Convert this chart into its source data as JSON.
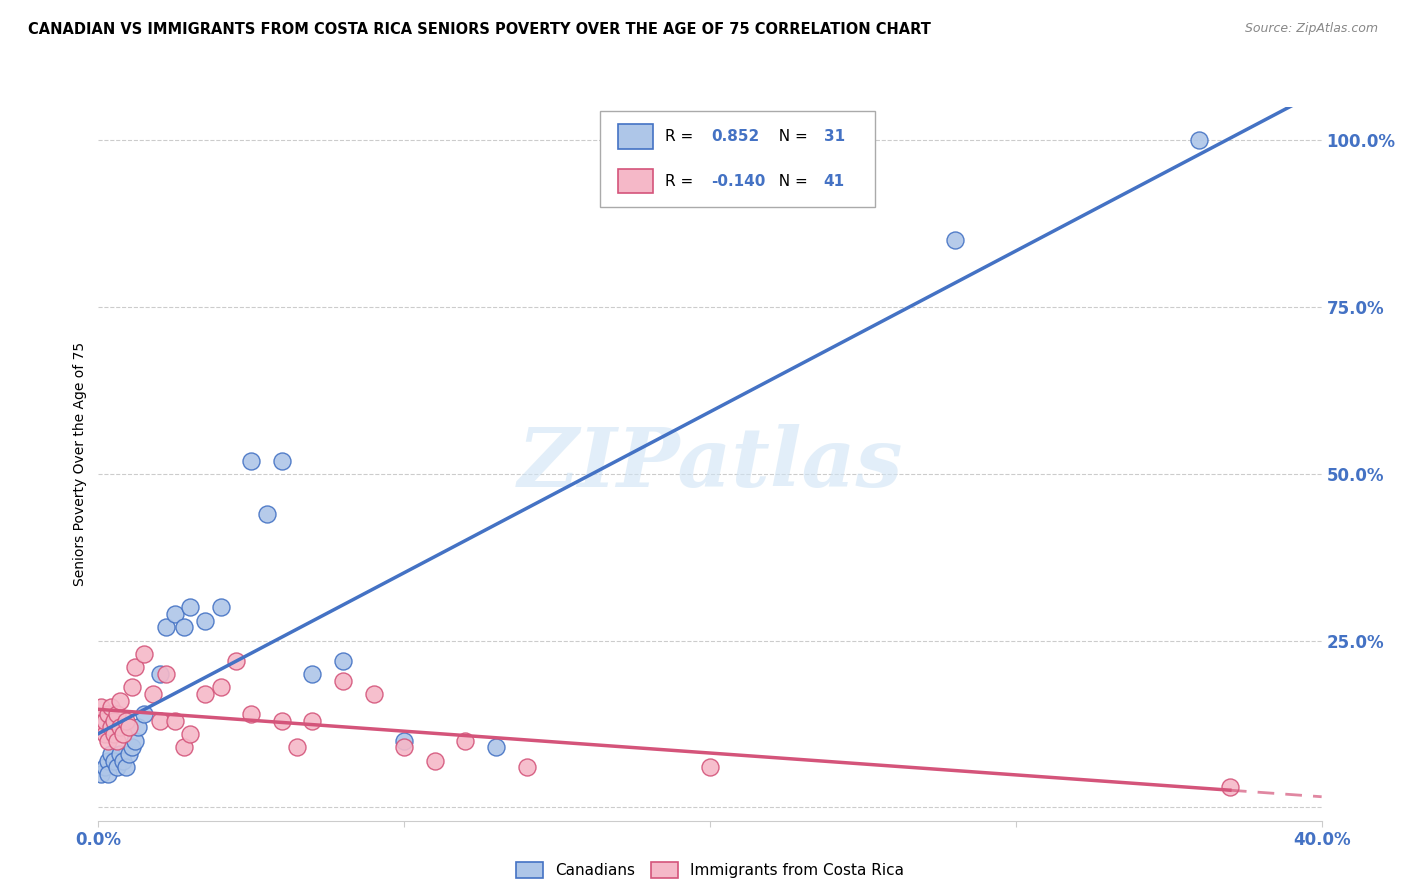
{
  "title": "CANADIAN VS IMMIGRANTS FROM COSTA RICA SENIORS POVERTY OVER THE AGE OF 75 CORRELATION CHART",
  "source": "Source: ZipAtlas.com",
  "ylabel": "Seniors Poverty Over the Age of 75",
  "watermark": "ZIPatlas",
  "canadians_R": 0.852,
  "canadians_N": 31,
  "immigrants_R": -0.14,
  "immigrants_N": 41,
  "canadian_color": "#aec6e8",
  "immigrant_color": "#f5b8c8",
  "canadian_line_color": "#4472c4",
  "immigrant_line_color": "#d4547a",
  "legend_R_color": "#4472c4",
  "canadians_x": [
    0.001,
    0.002,
    0.003,
    0.003,
    0.004,
    0.005,
    0.006,
    0.007,
    0.008,
    0.009,
    0.01,
    0.011,
    0.012,
    0.013,
    0.015,
    0.02,
    0.022,
    0.025,
    0.028,
    0.03,
    0.035,
    0.04,
    0.05,
    0.055,
    0.06,
    0.07,
    0.08,
    0.1,
    0.13,
    0.28,
    0.36
  ],
  "canadians_y": [
    0.05,
    0.06,
    0.07,
    0.05,
    0.08,
    0.07,
    0.06,
    0.08,
    0.07,
    0.06,
    0.08,
    0.09,
    0.1,
    0.12,
    0.14,
    0.2,
    0.27,
    0.29,
    0.27,
    0.3,
    0.28,
    0.3,
    0.52,
    0.44,
    0.52,
    0.2,
    0.22,
    0.1,
    0.09,
    0.85,
    1.0
  ],
  "immigrants_x": [
    0.001,
    0.001,
    0.002,
    0.002,
    0.003,
    0.003,
    0.004,
    0.004,
    0.005,
    0.005,
    0.006,
    0.006,
    0.007,
    0.007,
    0.008,
    0.009,
    0.01,
    0.011,
    0.012,
    0.015,
    0.018,
    0.02,
    0.022,
    0.025,
    0.028,
    0.03,
    0.035,
    0.04,
    0.045,
    0.05,
    0.06,
    0.065,
    0.07,
    0.08,
    0.09,
    0.1,
    0.11,
    0.12,
    0.14,
    0.2,
    0.37
  ],
  "immigrants_y": [
    0.12,
    0.15,
    0.11,
    0.13,
    0.1,
    0.14,
    0.12,
    0.15,
    0.11,
    0.13,
    0.1,
    0.14,
    0.12,
    0.16,
    0.11,
    0.13,
    0.12,
    0.18,
    0.21,
    0.23,
    0.17,
    0.13,
    0.2,
    0.13,
    0.09,
    0.11,
    0.17,
    0.18,
    0.22,
    0.14,
    0.13,
    0.09,
    0.13,
    0.19,
    0.17,
    0.09,
    0.07,
    0.1,
    0.06,
    0.06,
    0.03
  ],
  "xmin": 0.0,
  "xmax": 0.4,
  "ymin": -0.02,
  "ymax": 1.05,
  "yticks": [
    0.0,
    0.25,
    0.5,
    0.75,
    1.0
  ],
  "ytick_labels": [
    "",
    "25.0%",
    "50.0%",
    "75.0%",
    "100.0%"
  ],
  "xticks": [
    0.0,
    0.1,
    0.2,
    0.3,
    0.4
  ],
  "xtick_labels": [
    "0.0%",
    "",
    "",
    "",
    "40.0%"
  ],
  "grid_color": "#cccccc",
  "background_color": "#ffffff",
  "title_fontsize": 10.5,
  "tick_label_color_y": "#4472c4",
  "tick_label_color_x": "#4472c4"
}
